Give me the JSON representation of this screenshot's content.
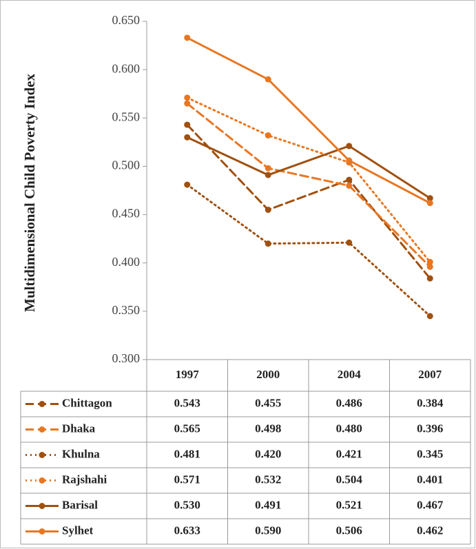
{
  "chart_data": {
    "type": "line",
    "y_label": "Multidimensional Child Poverty Index",
    "categories": [
      "1997",
      "2000",
      "2004",
      "2007"
    ],
    "ylim": [
      0.3,
      0.65
    ],
    "yticks": [
      {
        "value": 0.3,
        "label": "0.300"
      },
      {
        "value": 0.35,
        "label": "0.350"
      },
      {
        "value": 0.4,
        "label": "0.400"
      },
      {
        "value": 0.45,
        "label": "0.450"
      },
      {
        "value": 0.5,
        "label": "0.500"
      },
      {
        "value": 0.55,
        "label": "0.550"
      },
      {
        "value": 0.6,
        "label": "0.600"
      },
      {
        "value": 0.65,
        "label": "0.650"
      }
    ],
    "series": [
      {
        "name": "Chittagon",
        "color": "#a0500f",
        "dash": "dash",
        "values": [
          0.543,
          0.455,
          0.486,
          0.384
        ],
        "value_labels": [
          "0.543",
          "0.455",
          "0.486",
          "0.384"
        ]
      },
      {
        "name": "Dhaka",
        "color": "#e87722",
        "dash": "dash",
        "values": [
          0.565,
          0.498,
          0.48,
          0.396
        ],
        "value_labels": [
          "0.565",
          "0.498",
          "0.480",
          "0.396"
        ]
      },
      {
        "name": "Khulna",
        "color": "#a0500f",
        "dash": "dot",
        "values": [
          0.481,
          0.42,
          0.421,
          0.345
        ],
        "value_labels": [
          "0.481",
          "0.420",
          "0.421",
          "0.345"
        ]
      },
      {
        "name": "Rajshahi",
        "color": "#e87722",
        "dash": "dot",
        "values": [
          0.571,
          0.532,
          0.504,
          0.401
        ],
        "value_labels": [
          "0.571",
          "0.532",
          "0.504",
          "0.401"
        ]
      },
      {
        "name": "Barisal",
        "color": "#a0500f",
        "dash": "solid",
        "values": [
          0.53,
          0.491,
          0.521,
          0.467
        ],
        "value_labels": [
          "0.530",
          "0.491",
          "0.521",
          "0.467"
        ]
      },
      {
        "name": "Sylhet",
        "color": "#e87722",
        "dash": "solid",
        "values": [
          0.633,
          0.59,
          0.506,
          0.462
        ],
        "value_labels": [
          "0.633",
          "0.590",
          "0.506",
          "0.462"
        ]
      }
    ]
  }
}
